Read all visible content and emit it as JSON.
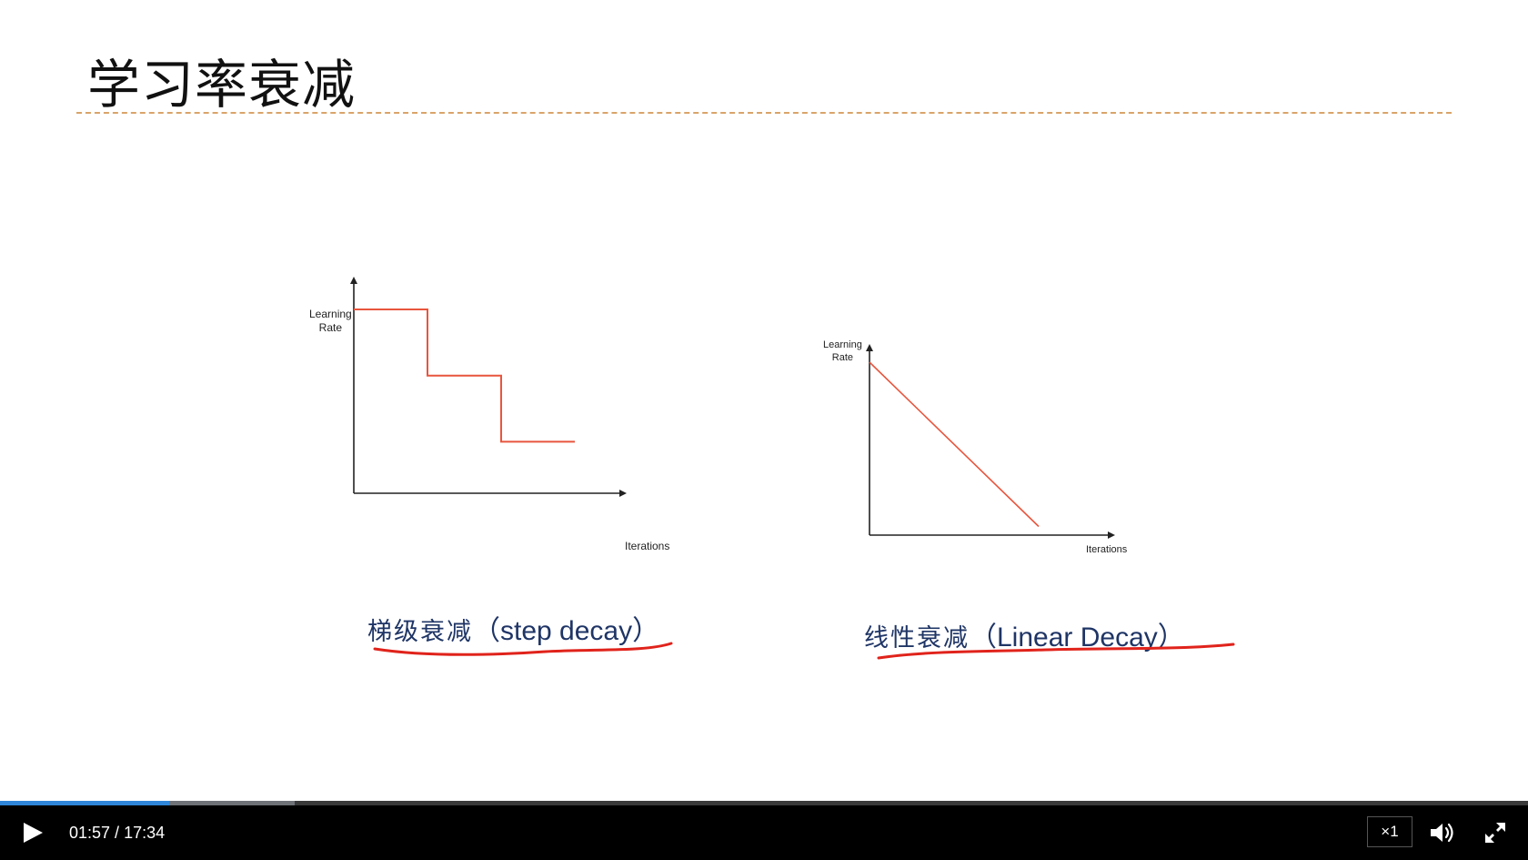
{
  "slide": {
    "title": "学习率衰减",
    "accent_color": "#e8553d",
    "charts": [
      {
        "id": "step",
        "type": "line",
        "ylabel": "Learning\nRate",
        "xlabel": "Iterations",
        "caption_zh": "梯级衰减",
        "caption_en": "（step decay）",
        "points": [
          [
            0,
            1
          ],
          [
            1,
            1
          ],
          [
            1,
            0.64
          ],
          [
            2,
            0.64
          ],
          [
            2,
            0.28
          ],
          [
            3,
            0.28
          ]
        ]
      },
      {
        "id": "linear",
        "type": "line",
        "ylabel": "Learning\nRate",
        "xlabel": "Iterations",
        "caption_zh": "线性衰减",
        "caption_en": "（Linear Decay）",
        "points": [
          [
            0,
            1
          ],
          [
            1,
            0.05
          ]
        ]
      }
    ]
  },
  "player": {
    "current_time": "01:57",
    "total_time": "17:34",
    "time_separator": " / ",
    "played_fraction": 0.111,
    "buffered_fraction": 0.193,
    "speed_label": "×1",
    "play_icon": "play-icon",
    "volume_icon": "volume-icon",
    "fullscreen_icon": "fullscreen-icon"
  }
}
